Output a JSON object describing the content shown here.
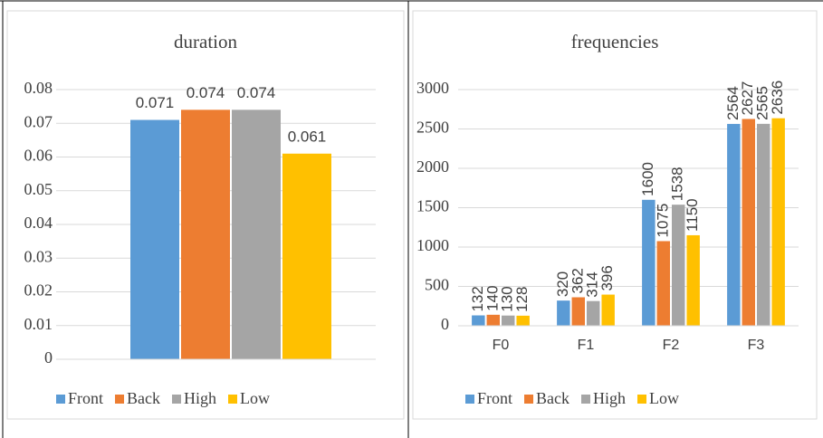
{
  "chart_data": [
    {
      "type": "bar",
      "title": "duration",
      "categories": [
        null
      ],
      "series": [
        {
          "name": "Front",
          "color": "#5b9bd5",
          "values": [
            0.071
          ]
        },
        {
          "name": "Back",
          "color": "#ed7d31",
          "values": [
            0.074
          ]
        },
        {
          "name": "High",
          "color": "#a5a5a5",
          "values": [
            0.074
          ]
        },
        {
          "name": "Low",
          "color": "#ffc000",
          "values": [
            0.061
          ]
        }
      ],
      "ylim": [
        0,
        0.08
      ],
      "yticks": [
        0,
        0.01,
        0.02,
        0.03,
        0.04,
        0.05,
        0.06,
        0.07,
        0.08
      ],
      "grid": true,
      "legend": "bottom"
    },
    {
      "type": "bar",
      "title": "frequencies",
      "categories": [
        "F0",
        "F1",
        "F2",
        "F3"
      ],
      "series": [
        {
          "name": "Front",
          "color": "#5b9bd5",
          "values": [
            132,
            320,
            1600,
            2564
          ]
        },
        {
          "name": "Back",
          "color": "#ed7d31",
          "values": [
            140,
            362,
            1075,
            2627
          ]
        },
        {
          "name": "High",
          "color": "#a5a5a5",
          "values": [
            130,
            314,
            1538,
            2565
          ]
        },
        {
          "name": "Low",
          "color": "#ffc000",
          "values": [
            128,
            396,
            1150,
            2636
          ]
        }
      ],
      "ylim": [
        0,
        3000
      ],
      "yticks": [
        0,
        500,
        1000,
        1500,
        2000,
        2500,
        3000
      ],
      "grid": true,
      "legend": "bottom"
    }
  ]
}
